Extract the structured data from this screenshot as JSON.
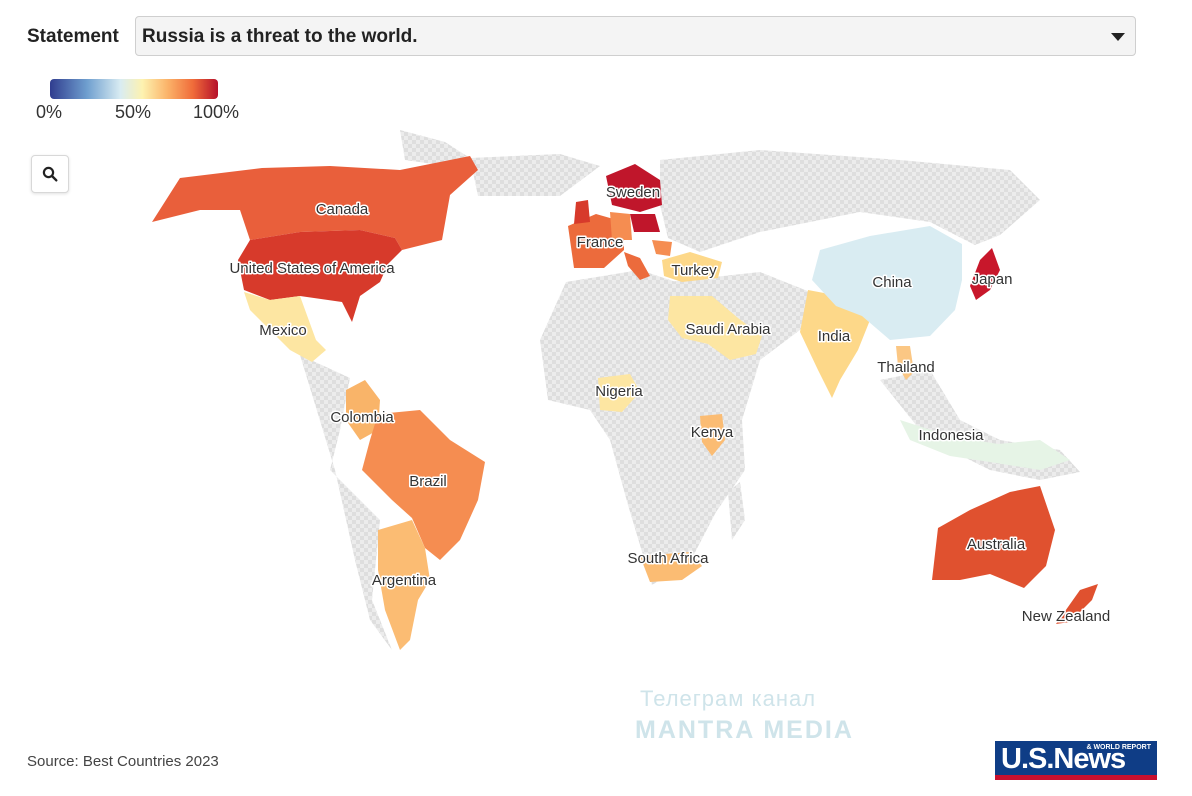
{
  "filter": {
    "label": "Statement",
    "selected": "Russia is a threat to the world."
  },
  "legend": {
    "ticks": [
      "0%",
      "50%",
      "100%"
    ],
    "colors": [
      "#303d8f",
      "#6f9fcf",
      "#d9ecf2",
      "#fdf2b0",
      "#fbb369",
      "#f06c3a",
      "#b5102a"
    ]
  },
  "zoom": {
    "icon": "search-icon"
  },
  "map": {
    "no_data_color": "#e6e6e6",
    "countries": [
      {
        "name": "Canada",
        "color": "#e95f3b"
      },
      {
        "name": "United States of America",
        "color": "#d73a2b"
      },
      {
        "name": "Mexico",
        "color": "#fde6a2"
      },
      {
        "name": "Colombia",
        "color": "#f9b469"
      },
      {
        "name": "Brazil",
        "color": "#f58d51"
      },
      {
        "name": "Argentina",
        "color": "#fbbc73"
      },
      {
        "name": "France",
        "color": "#ec6b3c"
      },
      {
        "name": "Sweden",
        "color": "#c0162b"
      },
      {
        "name": "Turkey",
        "color": "#fdd889"
      },
      {
        "name": "Saudi Arabia",
        "color": "#fde6a2"
      },
      {
        "name": "Nigeria",
        "color": "#fde6a2"
      },
      {
        "name": "Kenya",
        "color": "#fbbc73"
      },
      {
        "name": "South Africa",
        "color": "#fbbc73"
      },
      {
        "name": "India",
        "color": "#fdd889"
      },
      {
        "name": "China",
        "color": "#d9ecf2"
      },
      {
        "name": "Japan",
        "color": "#c8172b"
      },
      {
        "name": "Thailand",
        "color": "#fbc784"
      },
      {
        "name": "Indonesia",
        "color": "#e6f4e6"
      },
      {
        "name": "Australia",
        "color": "#e0512f"
      },
      {
        "name": "New Zealand",
        "color": "#e0512f"
      }
    ]
  },
  "watermark": {
    "line1": "Телеграм канал",
    "line2": "MANTRA MEDIA"
  },
  "source": "Source: Best Countries 2023",
  "logo": {
    "main": "U.S.News",
    "sub": "& WORLD REPORT"
  }
}
